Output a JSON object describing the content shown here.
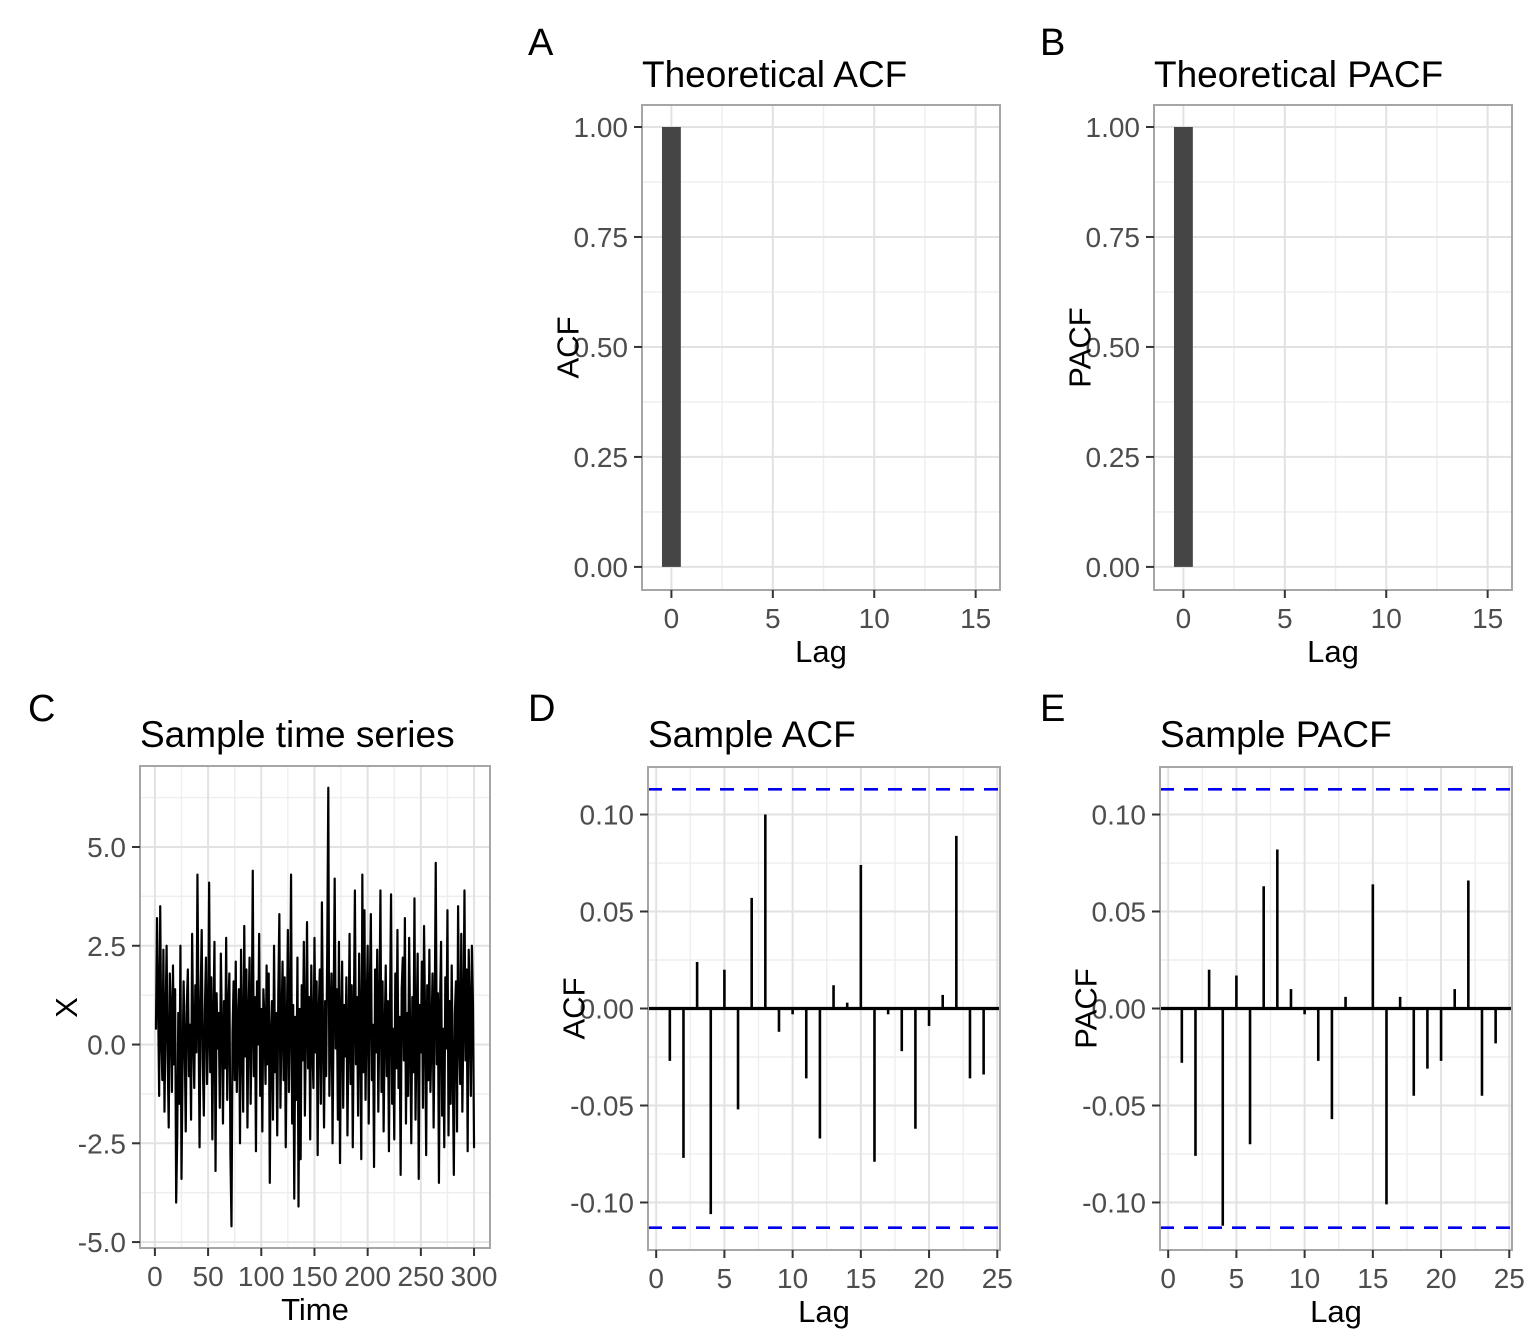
{
  "figure": {
    "background": "#ffffff",
    "accent_colors": {
      "bar_fill": "#454545",
      "spike_color": "#000000",
      "series_color": "#000000",
      "ci_line_color": "#0000ee",
      "grid_major": "#e2e2e2",
      "grid_minor": "#eeeeee",
      "panel_border": "#a6a6a6",
      "tick_mark": "#333333",
      "tick_label": "#4d4d4d"
    }
  },
  "chart_data": [
    {
      "letter": "A",
      "type": "bar",
      "title": "Theoretical ACF",
      "xlabel": "Lag",
      "ylabel": "ACF",
      "xlim": [
        -1.45,
        16.2
      ],
      "ylim": [
        -0.0525,
        1.05
      ],
      "xticks": [
        {
          "v": 0,
          "label": "0"
        },
        {
          "v": 5,
          "label": "5"
        },
        {
          "v": 10,
          "label": "10"
        },
        {
          "v": 15,
          "label": "15"
        }
      ],
      "yticks": [
        {
          "v": 0,
          "label": "0.00"
        },
        {
          "v": 0.25,
          "label": "0.25"
        },
        {
          "v": 0.5,
          "label": "0.50"
        },
        {
          "v": 0.75,
          "label": "0.75"
        },
        {
          "v": 1,
          "label": "1.00"
        }
      ],
      "xminor": [
        2.5,
        7.5,
        12.5
      ],
      "yminor": [
        0.125,
        0.375,
        0.625,
        0.875
      ],
      "bars": {
        "lags": [
          0
        ],
        "values": [
          1.0
        ],
        "width": 0.93
      }
    },
    {
      "letter": "B",
      "type": "bar",
      "title": "Theoretical PACF",
      "xlabel": "Lag",
      "ylabel": "PACF",
      "xlim": [
        -1.45,
        16.2
      ],
      "ylim": [
        -0.0525,
        1.05
      ],
      "xticks": [
        {
          "v": 0,
          "label": "0"
        },
        {
          "v": 5,
          "label": "5"
        },
        {
          "v": 10,
          "label": "10"
        },
        {
          "v": 15,
          "label": "15"
        }
      ],
      "yticks": [
        {
          "v": 0,
          "label": "0.00"
        },
        {
          "v": 0.25,
          "label": "0.25"
        },
        {
          "v": 0.5,
          "label": "0.50"
        },
        {
          "v": 0.75,
          "label": "0.75"
        },
        {
          "v": 1,
          "label": "1.00"
        }
      ],
      "xminor": [
        2.5,
        7.5,
        12.5
      ],
      "yminor": [
        0.125,
        0.375,
        0.625,
        0.875
      ],
      "bars": {
        "lags": [
          0
        ],
        "values": [
          1.0
        ],
        "width": 0.93
      }
    },
    {
      "letter": "C",
      "type": "line",
      "title": "Sample time series",
      "xlabel": "Time",
      "ylabel": "X",
      "xlim": [
        -14,
        315
      ],
      "ylim": [
        -5.15,
        7.05
      ],
      "xticks": [
        {
          "v": 0,
          "label": "0"
        },
        {
          "v": 50,
          "label": "50"
        },
        {
          "v": 100,
          "label": "100"
        },
        {
          "v": 150,
          "label": "150"
        },
        {
          "v": 200,
          "label": "200"
        },
        {
          "v": 250,
          "label": "250"
        },
        {
          "v": 300,
          "label": "300"
        }
      ],
      "yticks": [
        {
          "v": -5,
          "label": "-5.0"
        },
        {
          "v": -2.5,
          "label": "-2.5"
        },
        {
          "v": 0,
          "label": "0.0"
        },
        {
          "v": 2.5,
          "label": "2.5"
        },
        {
          "v": 5,
          "label": "5.0"
        }
      ],
      "xminor": [
        25,
        75,
        125,
        175,
        225,
        275
      ],
      "yminor": [
        -3.75,
        -1.25,
        1.25,
        3.75,
        6.25
      ],
      "series": {
        "start_t": 1,
        "n": 300,
        "values": [
          0.4,
          3.2,
          1.1,
          -1.3,
          3.5,
          0.2,
          -0.9,
          2.4,
          -1.7,
          0.6,
          2.5,
          -0.3,
          -2.1,
          1.8,
          0.9,
          -1.2,
          2.0,
          -0.5,
          1.4,
          -4.0,
          -2.3,
          0.8,
          -1.5,
          2.5,
          -3.4,
          -0.6,
          1.6,
          0.1,
          -2.2,
          1.0,
          1.9,
          -0.8,
          0.5,
          -1.9,
          2.8,
          0.3,
          -1.1,
          1.5,
          -0.2,
          4.3,
          0.7,
          -2.6,
          1.2,
          2.9,
          -0.4,
          -1.8,
          0.9,
          2.2,
          -1.0,
          0.2,
          4.1,
          -0.7,
          1.7,
          -2.4,
          0.6,
          2.6,
          -3.2,
          1.3,
          -0.1,
          0.8,
          -1.6,
          2.3,
          0.4,
          -2.0,
          1.1,
          -0.6,
          2.7,
          -1.4,
          0.9,
          1.8,
          -2.8,
          -4.6,
          0.3,
          1.6,
          -0.9,
          2.1,
          -1.2,
          0.5,
          1.4,
          -2.5,
          2.4,
          0.1,
          -1.7,
          3.0,
          -0.3,
          1.9,
          -2.1,
          0.7,
          2.2,
          -1.5,
          0.4,
          4.4,
          -0.8,
          1.2,
          -2.7,
          1.6,
          0.0,
          2.8,
          -1.3,
          0.9,
          -2.2,
          1.4,
          0.6,
          -1.0,
          2.0,
          -0.5,
          1.8,
          -3.5,
          0.2,
          1.1,
          -1.9,
          2.5,
          -0.7,
          0.8,
          -2.3,
          1.3,
          3.3,
          -1.6,
          0.5,
          2.1,
          -0.9,
          1.7,
          -2.6,
          0.3,
          2.9,
          -1.2,
          0.6,
          4.3,
          -2.0,
          1.0,
          -3.9,
          0.7,
          -1.4,
          2.2,
          -4.1,
          0.9,
          -2.9,
          1.5,
          -0.4,
          2.6,
          -1.8,
          0.4,
          3.1,
          -0.6,
          1.2,
          -2.4,
          2.0,
          0.1,
          -1.1,
          2.7,
          -0.2,
          1.6,
          -2.8,
          0.8,
          1.9,
          -1.5,
          3.6,
          0.3,
          -2.1,
          1.1,
          -0.8,
          2.4,
          6.5,
          -1.3,
          0.5,
          1.8,
          -2.5,
          0.9,
          4.2,
          -0.1,
          1.4,
          -1.9,
          2.6,
          -3.0,
          0.6,
          2.1,
          -1.6,
          1.0,
          -0.3,
          1.7,
          -2.3,
          0.2,
          2.8,
          -1.0,
          1.5,
          -2.6,
          0.7,
          3.9,
          -0.5,
          1.2,
          -1.8,
          2.3,
          0.4,
          -2.9,
          4.3,
          -0.7,
          3.4,
          -1.4,
          0.8,
          2.5,
          -2.0,
          1.3,
          3.3,
          -0.9,
          0.5,
          -3.1,
          1.9,
          -0.2,
          2.4,
          -1.7,
          0.6,
          3.9,
          -1.2,
          1.6,
          -2.2,
          0.3,
          2.0,
          -0.8,
          1.1,
          -2.7,
          0.9,
          3.8,
          -1.5,
          0.4,
          -2.4,
          1.8,
          -0.6,
          2.9,
          -1.1,
          0.7,
          -3.3,
          1.4,
          2.2,
          -0.4,
          3.2,
          -2.0,
          0.8,
          -1.3,
          2.7,
          0.1,
          -2.5,
          1.2,
          -0.7,
          3.7,
          -1.9,
          0.5,
          2.3,
          -3.4,
          1.0,
          -0.2,
          2.1,
          -1.6,
          3.0,
          0.6,
          -2.8,
          1.5,
          -0.9,
          2.4,
          -1.2,
          0.3,
          1.8,
          -2.1,
          0.7,
          4.6,
          -0.5,
          1.3,
          -3.5,
          0.9,
          2.6,
          -1.8,
          0.4,
          -2.6,
          1.7,
          -0.1,
          3.4,
          -2.3,
          1.1,
          -1.5,
          2.0,
          -0.6,
          -3.3,
          0.8,
          1.6,
          -2.2,
          3.5,
          0.2,
          -1.0,
          2.8,
          -1.7,
          0.5,
          3.9,
          -0.4,
          1.9,
          -2.7,
          2.4,
          0.9,
          -1.3,
          2.5,
          1.0,
          -2.6
        ]
      }
    },
    {
      "letter": "D",
      "type": "spike",
      "title": "Sample ACF",
      "xlabel": "Lag",
      "ylabel": "ACF",
      "xlim": [
        -0.6,
        25.2
      ],
      "ylim": [
        -0.1245,
        0.1245
      ],
      "xticks": [
        {
          "v": 0,
          "label": "0"
        },
        {
          "v": 5,
          "label": "5"
        },
        {
          "v": 10,
          "label": "10"
        },
        {
          "v": 15,
          "label": "15"
        },
        {
          "v": 20,
          "label": "20"
        },
        {
          "v": 25,
          "label": "25"
        }
      ],
      "yticks": [
        {
          "v": -0.1,
          "label": "-0.10"
        },
        {
          "v": -0.05,
          "label": "-0.05"
        },
        {
          "v": 0,
          "label": "0.00"
        },
        {
          "v": 0.05,
          "label": "0.05"
        },
        {
          "v": 0.1,
          "label": "0.10"
        }
      ],
      "xminor": [
        2.5,
        7.5,
        12.5,
        17.5,
        22.5
      ],
      "yminor": [
        -0.075,
        -0.025,
        0.025,
        0.075
      ],
      "ci": {
        "value": 0.113,
        "style": "dashed"
      },
      "spikes": {
        "start_lag": 1,
        "values": [
          -0.027,
          -0.077,
          0.024,
          -0.106,
          0.02,
          -0.052,
          0.057,
          0.1,
          -0.012,
          -0.003,
          -0.036,
          -0.067,
          0.012,
          0.003,
          0.074,
          -0.079,
          -0.003,
          -0.022,
          -0.062,
          -0.009,
          0.007,
          0.089,
          -0.036,
          -0.034
        ]
      }
    },
    {
      "letter": "E",
      "type": "spike",
      "title": "Sample PACF",
      "xlabel": "Lag",
      "ylabel": "PACF",
      "xlim": [
        -0.6,
        25.2
      ],
      "ylim": [
        -0.1245,
        0.1245
      ],
      "xticks": [
        {
          "v": 0,
          "label": "0"
        },
        {
          "v": 5,
          "label": "5"
        },
        {
          "v": 10,
          "label": "10"
        },
        {
          "v": 15,
          "label": "15"
        },
        {
          "v": 20,
          "label": "20"
        },
        {
          "v": 25,
          "label": "25"
        }
      ],
      "yticks": [
        {
          "v": -0.1,
          "label": "-0.10"
        },
        {
          "v": -0.05,
          "label": "-0.05"
        },
        {
          "v": 0,
          "label": "0.00"
        },
        {
          "v": 0.05,
          "label": "0.05"
        },
        {
          "v": 0.1,
          "label": "0.10"
        }
      ],
      "xminor": [
        2.5,
        7.5,
        12.5,
        17.5,
        22.5
      ],
      "yminor": [
        -0.075,
        -0.025,
        0.025,
        0.075
      ],
      "ci": {
        "value": 0.113,
        "style": "dashed"
      },
      "spikes": {
        "start_lag": 1,
        "values": [
          -0.028,
          -0.076,
          0.02,
          -0.112,
          0.017,
          -0.07,
          0.063,
          0.082,
          0.01,
          -0.003,
          -0.027,
          -0.057,
          0.006,
          0.0,
          0.064,
          -0.101,
          0.006,
          -0.045,
          -0.031,
          -0.027,
          0.01,
          0.066,
          -0.045,
          -0.018
        ]
      }
    }
  ]
}
